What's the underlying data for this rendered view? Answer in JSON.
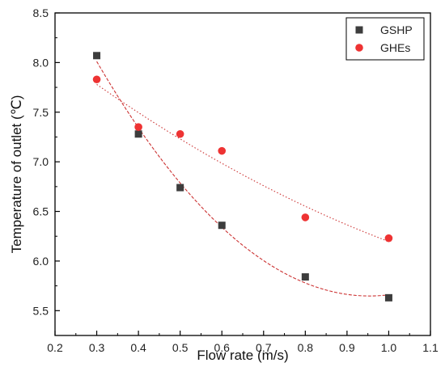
{
  "chart_data": {
    "type": "scatter",
    "xlabel": "Flow rate (m/s)",
    "ylabel": "Temperature of outlet (℃)",
    "xlim": [
      0.2,
      1.1
    ],
    "ylim": [
      5.25,
      8.5
    ],
    "xticks": [
      "0.2",
      "0.3",
      "0.4",
      "0.5",
      "0.6",
      "0.7",
      "0.8",
      "0.9",
      "1.0",
      "1.1"
    ],
    "yticks": [
      "5.5",
      "6.0",
      "6.5",
      "7.0",
      "7.5",
      "8.0",
      "8.5"
    ],
    "legend": {
      "position": "top-right"
    },
    "grid": false,
    "series": [
      {
        "name": "GSHP",
        "marker": "square",
        "color": "#3d3d3d",
        "x": [
          0.3,
          0.4,
          0.5,
          0.6,
          0.8,
          1.0
        ],
        "y": [
          8.07,
          7.28,
          6.74,
          6.36,
          5.84,
          5.63
        ],
        "fit": {
          "style": "dashed",
          "color": "#cc3333"
        }
      },
      {
        "name": "GHEs",
        "marker": "circle",
        "color": "#ee3333",
        "x": [
          0.3,
          0.4,
          0.5,
          0.6,
          0.8,
          1.0
        ],
        "y": [
          7.83,
          7.35,
          7.28,
          7.11,
          6.44,
          6.23
        ],
        "fit": {
          "style": "dotted",
          "color": "#cc3333"
        }
      }
    ]
  }
}
